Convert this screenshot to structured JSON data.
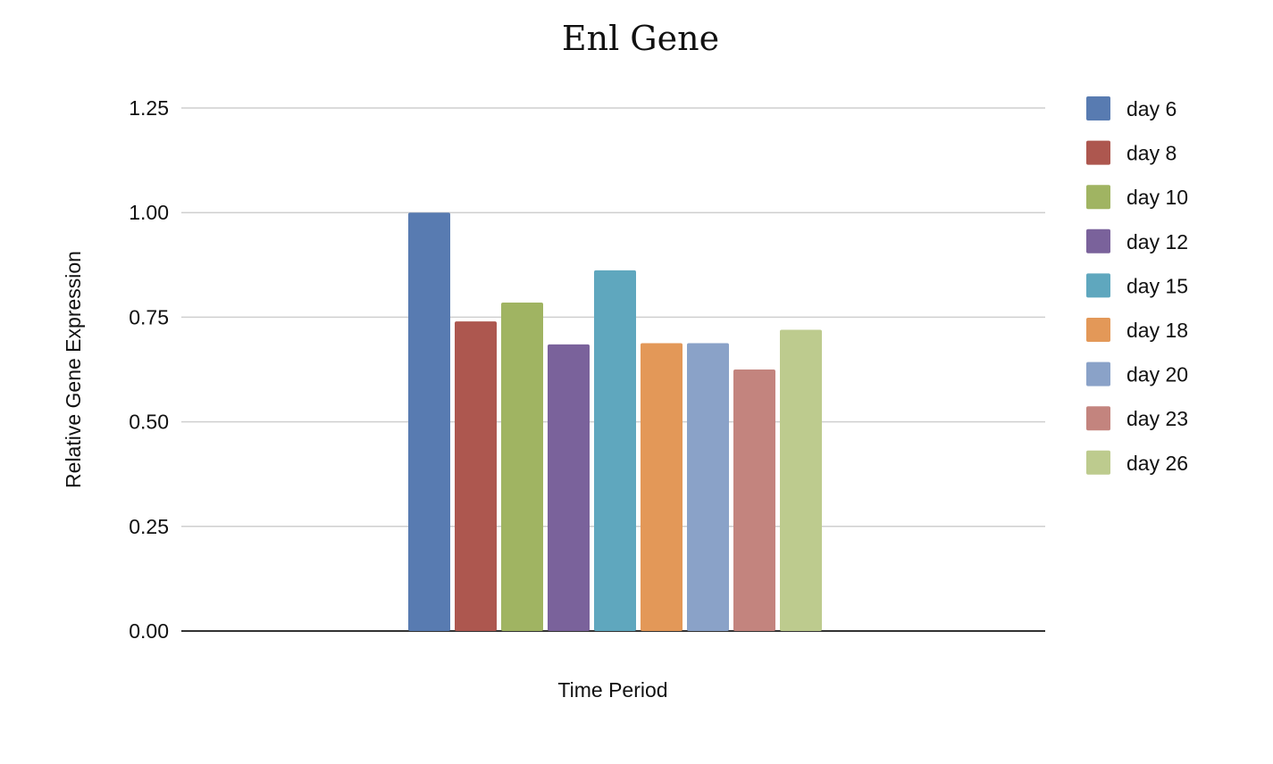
{
  "chart_data": {
    "type": "bar",
    "title": "Enl Gene",
    "xlabel": "Time Period",
    "ylabel": "Relative Gene Expression",
    "ylim": [
      0,
      1.25
    ],
    "yticks": [
      "0.00",
      "0.25",
      "0.50",
      "0.75",
      "1.00",
      "1.25"
    ],
    "grid": true,
    "legend_position": "right",
    "categories": [
      ""
    ],
    "series": [
      {
        "name": "day 6",
        "values": [
          1.0
        ],
        "color": "#587bb1"
      },
      {
        "name": "day 8",
        "values": [
          0.74
        ],
        "color": "#ad574f"
      },
      {
        "name": "day 10",
        "values": [
          0.785
        ],
        "color": "#a0b462"
      },
      {
        "name": "day 12",
        "values": [
          0.685
        ],
        "color": "#7a629b"
      },
      {
        "name": "day 15",
        "values": [
          0.862
        ],
        "color": "#5fa7be"
      },
      {
        "name": "day 18",
        "values": [
          0.688
        ],
        "color": "#e39858"
      },
      {
        "name": "day 20",
        "values": [
          0.688
        ],
        "color": "#8aa2c8"
      },
      {
        "name": "day 23",
        "values": [
          0.625
        ],
        "color": "#c3847e"
      },
      {
        "name": "day 26",
        "values": [
          0.72
        ],
        "color": "#bdcb8e"
      }
    ]
  }
}
